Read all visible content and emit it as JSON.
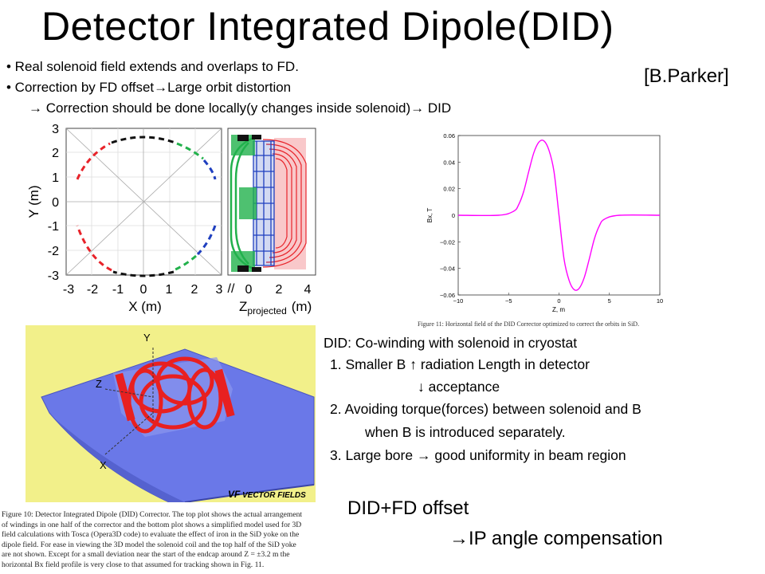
{
  "slide": {
    "title": "Detector Integrated Dipole(DID)",
    "credit": "[B.Parker]",
    "bullets": [
      "• Real solenoid field extends and overlaps to FD.",
      "• Correction by FD offset",
      "Large orbit distortion",
      "Correction should be done locally(y changes inside solenoid)",
      "DID"
    ],
    "arrow": "→",
    "arrow_up": "↑",
    "arrow_down": "↓"
  },
  "coil_plot": {
    "ylabel": "Y (m)",
    "xlabel": "X (m)",
    "zlabel_main": "Z",
    "zlabel_sub": "projected",
    "zlabel_unit": "(m)",
    "yticks": [
      "3",
      "2",
      "1",
      "0",
      "-1",
      "-2",
      "-3"
    ],
    "xticks": [
      "-3",
      "-2",
      "-1",
      "0",
      "1",
      "2",
      "3"
    ],
    "zticks": [
      "0",
      "2",
      "4"
    ],
    "colors": {
      "red": "#e8232a",
      "green": "#22b14c",
      "blue": "#1f3fbf",
      "black": "#111111"
    }
  },
  "chart_data": {
    "type": "line",
    "xlabel": "Z, m",
    "ylabel": "Bx, T",
    "xlim": [
      -10,
      10
    ],
    "ylim": [
      -0.06,
      0.06
    ],
    "xticks": [
      "−10",
      "−5",
      "0",
      "5",
      "10"
    ],
    "yticks": [
      "0.06",
      "0.04",
      "0.02",
      "0",
      "−0.02",
      "−0.04",
      "−0.06"
    ],
    "series": [
      {
        "color": "#ff00ff",
        "x": [
          -10,
          -6,
          -4.5,
          -4,
          -3.5,
          -3,
          -2.5,
          -2,
          -1.5,
          -1,
          -0.5,
          0,
          0.5,
          1,
          1.5,
          2,
          2.5,
          3,
          3.5,
          4,
          4.5,
          6,
          10
        ],
        "y": [
          0,
          0,
          0.003,
          0.008,
          0.018,
          0.033,
          0.047,
          0.055,
          0.056,
          0.049,
          0.033,
          0,
          -0.033,
          -0.049,
          -0.056,
          -0.055,
          -0.047,
          -0.033,
          -0.018,
          -0.008,
          -0.003,
          0,
          0
        ]
      }
    ],
    "caption": "Figure 11: Horizontal field of the DID Corrector optimized to correct the orbits in SiD."
  },
  "model3d": {
    "axis_y": "Y",
    "axis_z": "Z",
    "axis_x": "X",
    "brand": "VECTOR FIELDS",
    "brand_logo": "VF"
  },
  "did_notes": {
    "heading": "DID: Co-winding with solenoid in cryostat",
    "item1a_pre": "1. Smaller B",
    "item1a_post": "radiation Length in detector",
    "item1b": "acceptance",
    "item2a": "2. Avoiding torque(forces) between solenoid and B",
    "item2b": "when B is introduced separately.",
    "item3_pre": "3. Large bore",
    "item3_post": "good uniformity in beam region"
  },
  "offset_notes": {
    "line1": "DID+FD offset",
    "line2": "IP angle compensation"
  },
  "fig10_caption": [
    "Figure 10: Detector Integrated Dipole (DID) Corrector. The top plot shows the actual arrangement",
    "of windings in one half of the corrector and the bottom plot shows a simplified model used for 3D",
    "field calculations with Tosca (Opera3D code) to evaluate the effect of iron in the SiD yoke on the",
    "dipole field. For ease in viewing the 3D model the solenoid coil and the top half of the SiD yoke",
    "are not shown. Except for a small deviation near the start of the endcap around Z = ±3.2 m the",
    "horizontal Bx field profile is very close to that assumed for tracking shown in Fig. 11."
  ]
}
